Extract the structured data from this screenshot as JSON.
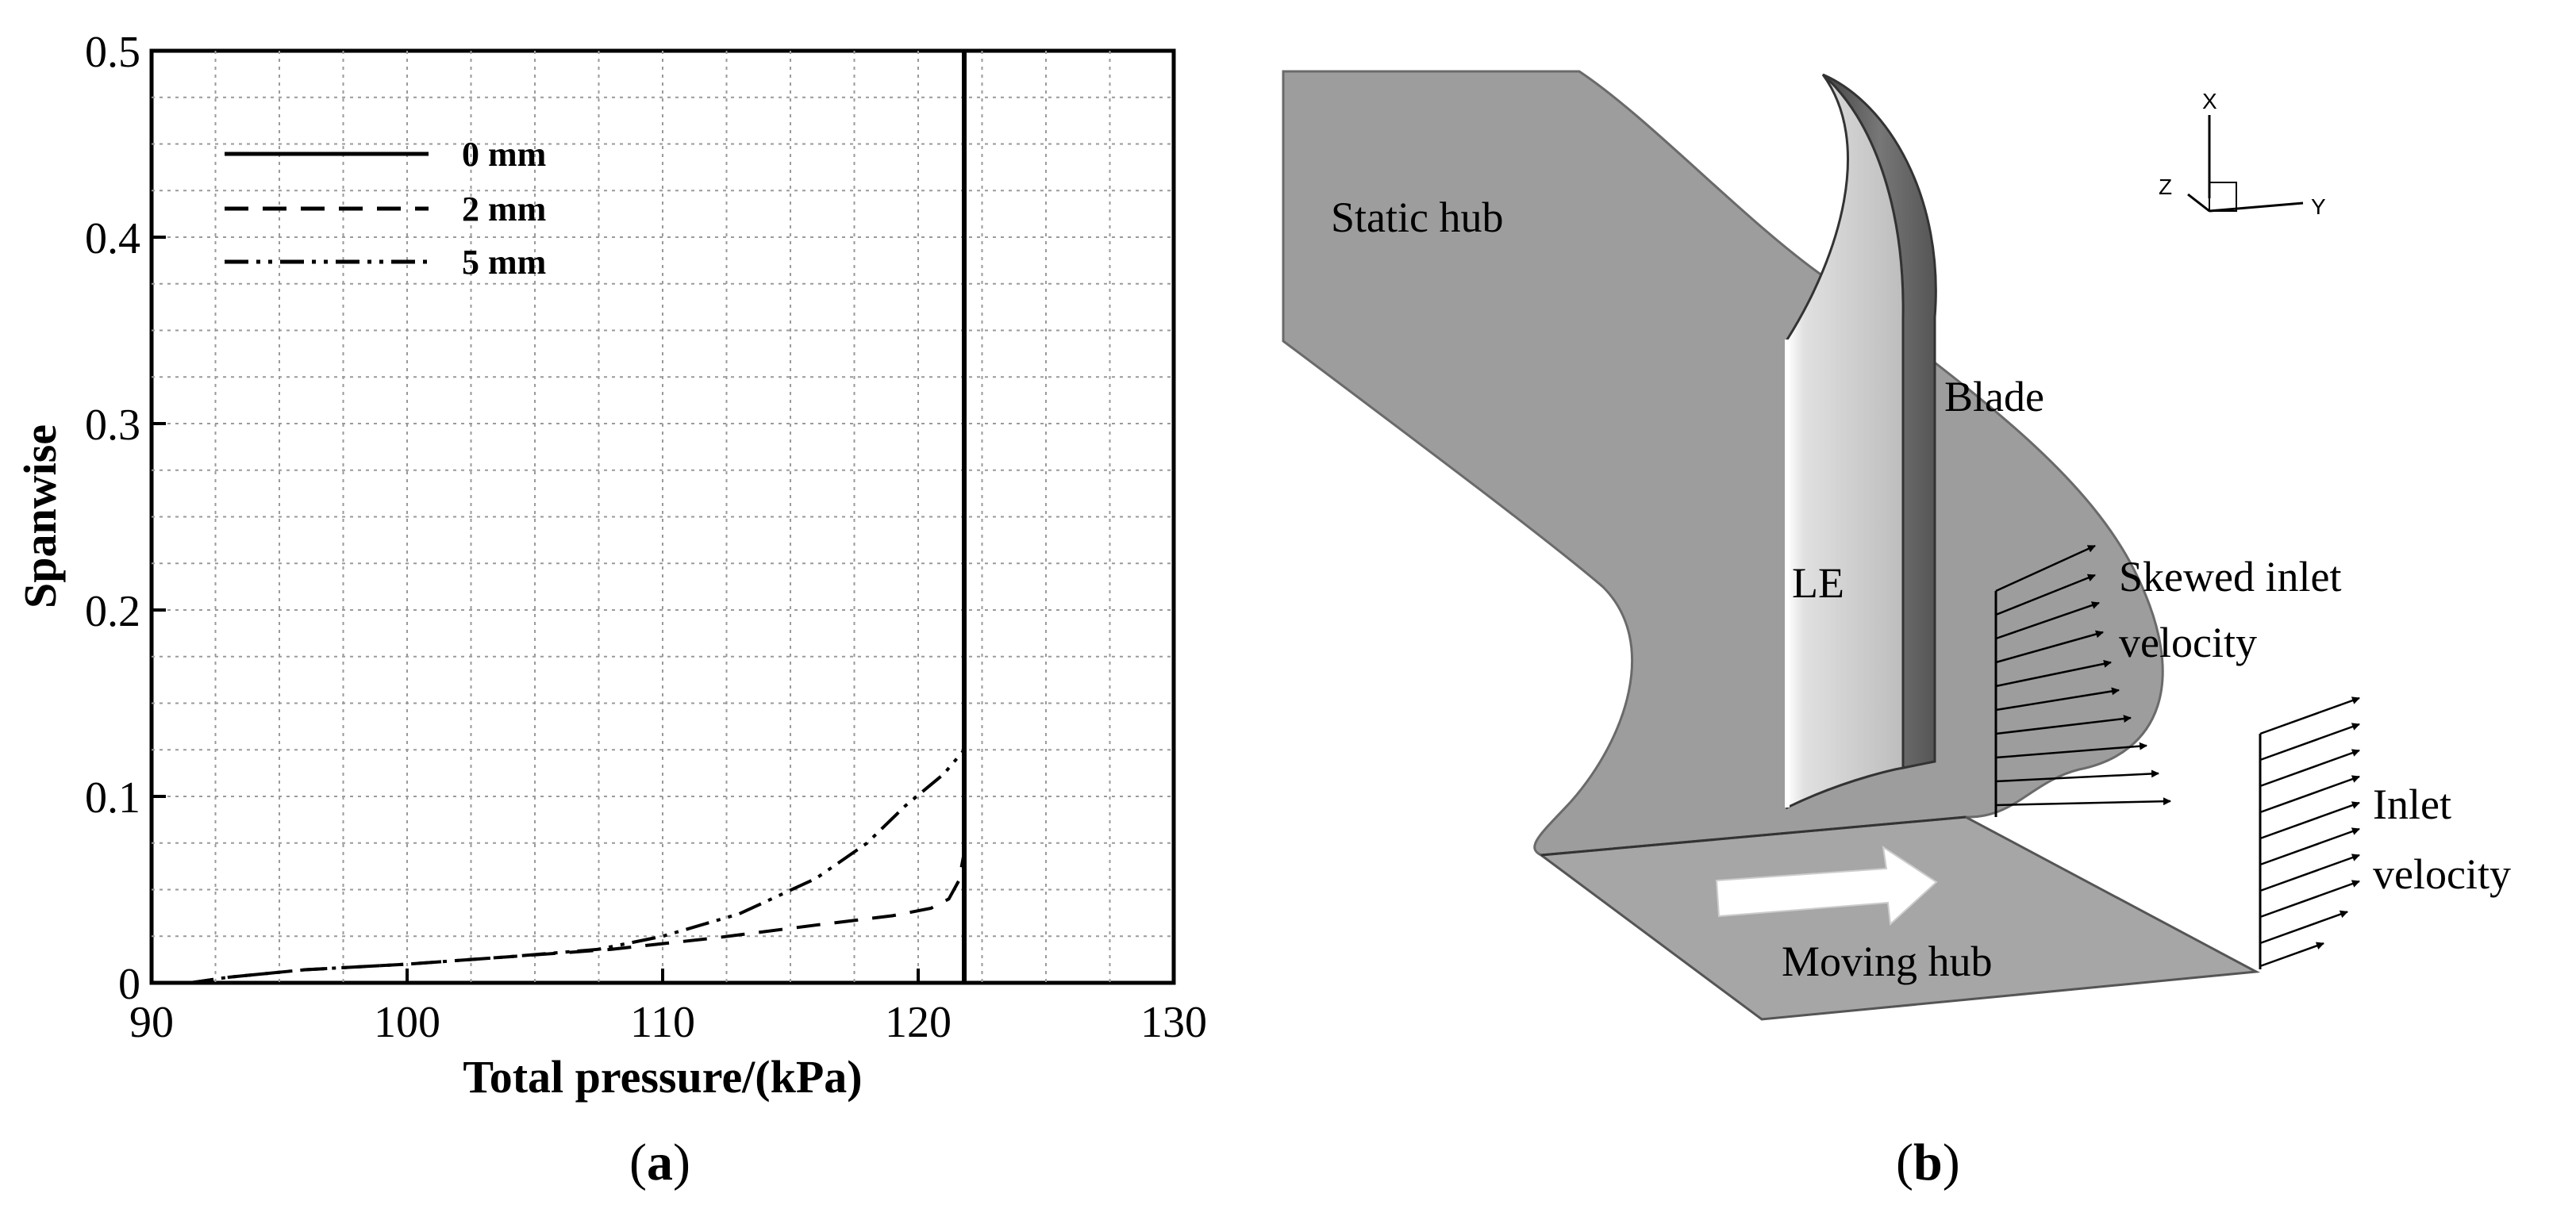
{
  "chart_data": {
    "type": "line",
    "xlabel": "Total pressure/(kPa)",
    "ylabel": "Spanwise",
    "xlim": [
      90,
      130
    ],
    "ylim": [
      0,
      0.5
    ],
    "xticks": [
      90,
      100,
      110,
      120,
      130
    ],
    "xtick_labels": [
      "90",
      "100",
      "110",
      "120",
      "130"
    ],
    "yticks": [
      0,
      0.1,
      0.2,
      0.3,
      0.4,
      0.5
    ],
    "ytick_labels": [
      "0",
      "0.1",
      "0.2",
      "0.3",
      "0.4",
      "0.5"
    ],
    "grid": true,
    "legend_position": "top-left",
    "series": [
      {
        "name": "0 mm",
        "style": "solid",
        "points": [
          [
            121.8,
            0
          ],
          [
            121.8,
            0.5
          ]
        ]
      },
      {
        "name": "2 mm",
        "style": "dashed",
        "points": [
          [
            91.5,
            0.0
          ],
          [
            93,
            0.003
          ],
          [
            96,
            0.007
          ],
          [
            100,
            0.01
          ],
          [
            104,
            0.014
          ],
          [
            108,
            0.018
          ],
          [
            112,
            0.024
          ],
          [
            116,
            0.031
          ],
          [
            119,
            0.036
          ],
          [
            120.5,
            0.04
          ],
          [
            121.2,
            0.045
          ],
          [
            121.6,
            0.055
          ],
          [
            121.8,
            0.07
          ]
        ]
      },
      {
        "name": "5 mm",
        "style": "dashdot",
        "points": [
          [
            91.5,
            0.0
          ],
          [
            93,
            0.003
          ],
          [
            96,
            0.007
          ],
          [
            100,
            0.01
          ],
          [
            104,
            0.014
          ],
          [
            107.5,
            0.018
          ],
          [
            110,
            0.025
          ],
          [
            113,
            0.037
          ],
          [
            116,
            0.056
          ],
          [
            118,
            0.075
          ],
          [
            119.5,
            0.095
          ],
          [
            121,
            0.112
          ],
          [
            121.8,
            0.125
          ]
        ]
      }
    ]
  },
  "diagram": {
    "labels": {
      "static_hub": "Static hub",
      "blade": "Blade",
      "le": "LE",
      "skewed_line1": "Skewed inlet",
      "skewed_line2": "velocity",
      "inlet_line1": "Inlet",
      "inlet_line2": "velocity",
      "moving_hub": "Moving hub"
    },
    "axes": {
      "x": "X",
      "y": "Y",
      "z": "Z"
    }
  },
  "captions": {
    "a": "a",
    "b": "b"
  }
}
